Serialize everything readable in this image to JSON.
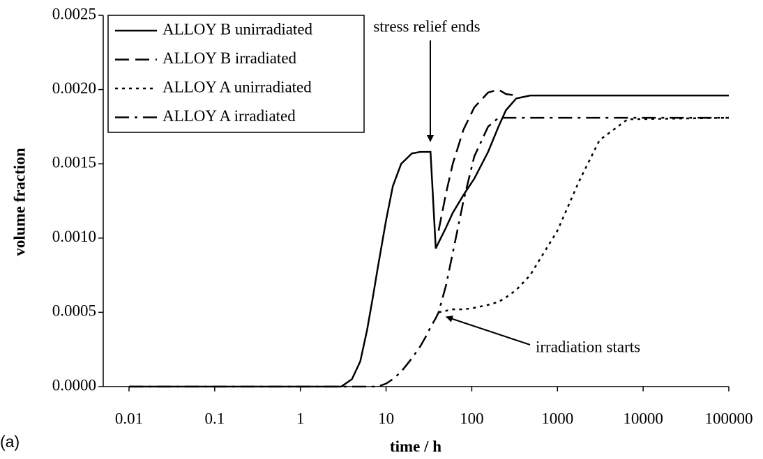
{
  "chart_data": {
    "type": "line",
    "xlabel": "time / h",
    "ylabel": "volume fraction",
    "panel_label": "(a)",
    "annotations": [
      "stress relief ends",
      "irradiation starts"
    ],
    "x": [
      0.01,
      1,
      3,
      4,
      5,
      6,
      7,
      8,
      10,
      12,
      15,
      20,
      25,
      30,
      33,
      38,
      41,
      50,
      60,
      80,
      107,
      155,
      205,
      250,
      330,
      480,
      1000,
      1780,
      3100,
      6600,
      100000
    ],
    "xscale": "log",
    "xlim": [
      0.005,
      100000
    ],
    "xticks": [
      0.01,
      0.1,
      1,
      10,
      100,
      1000,
      10000,
      100000
    ],
    "ylim": [
      0,
      0.0025
    ],
    "yticks": [
      {
        "value": 0,
        "label": "0.0000"
      },
      {
        "value": 0.0005,
        "label": "0.0005"
      },
      {
        "value": 0.001,
        "label": "0.0010"
      },
      {
        "value": 0.0015,
        "label": "0.0015"
      },
      {
        "value": 0.002,
        "label": "0.0020"
      },
      {
        "value": 0.0025,
        "label": "0.0025"
      }
    ],
    "grid": false,
    "legend": "upper left",
    "series": [
      {
        "name": "ALLOY B unirradiated",
        "color": "#000000",
        "dash": "solid",
        "values": [
          0,
          0,
          0,
          5e-05,
          0.00017,
          0.00038,
          0.0006,
          0.0008,
          0.00112,
          0.00135,
          0.0015,
          0.00157,
          0.00158,
          0.00158,
          0.00158,
          0.00093,
          0.00097,
          0.00107,
          0.00117,
          0.00129,
          0.0014,
          0.00158,
          0.00175,
          0.00186,
          0.00194,
          0.00196,
          0.00196,
          0.00196,
          0.00196,
          0.00196,
          0.00196
        ]
      },
      {
        "name": "ALLOY B irradiated",
        "color": "#000000",
        "dash": "dashed",
        "values": [
          null,
          null,
          null,
          null,
          null,
          null,
          null,
          null,
          null,
          null,
          null,
          null,
          null,
          null,
          null,
          null,
          0.00105,
          0.0013,
          0.0015,
          0.00173,
          0.00188,
          0.00198,
          0.002,
          0.00197,
          0.00196,
          null,
          null,
          null,
          null,
          null,
          null
        ]
      },
      {
        "name": "ALLOY A unirradiated",
        "color": "#000000",
        "dash": "dotted",
        "values": [
          null,
          null,
          null,
          null,
          null,
          null,
          null,
          null,
          null,
          null,
          null,
          null,
          null,
          null,
          null,
          null,
          0.0005,
          0.00051,
          0.00052,
          0.00052,
          0.00053,
          0.00055,
          0.00057,
          0.0006,
          0.00065,
          0.00075,
          0.00105,
          0.00138,
          0.00166,
          0.0018,
          0.00181
        ]
      },
      {
        "name": "ALLOY A irradiated",
        "color": "#000000",
        "dash": "dashdot",
        "values": [
          0,
          0,
          0,
          0,
          0,
          0,
          0,
          0,
          2e-05,
          5e-05,
          0.0001,
          0.00019,
          0.00027,
          0.00035,
          0.0004,
          0.00046,
          0.0005,
          0.00068,
          0.0009,
          0.00125,
          0.00155,
          0.00175,
          0.00181,
          0.00181,
          0.00181,
          0.00181,
          0.00181,
          0.00181,
          0.00181,
          0.00181,
          0.00181
        ]
      }
    ]
  }
}
